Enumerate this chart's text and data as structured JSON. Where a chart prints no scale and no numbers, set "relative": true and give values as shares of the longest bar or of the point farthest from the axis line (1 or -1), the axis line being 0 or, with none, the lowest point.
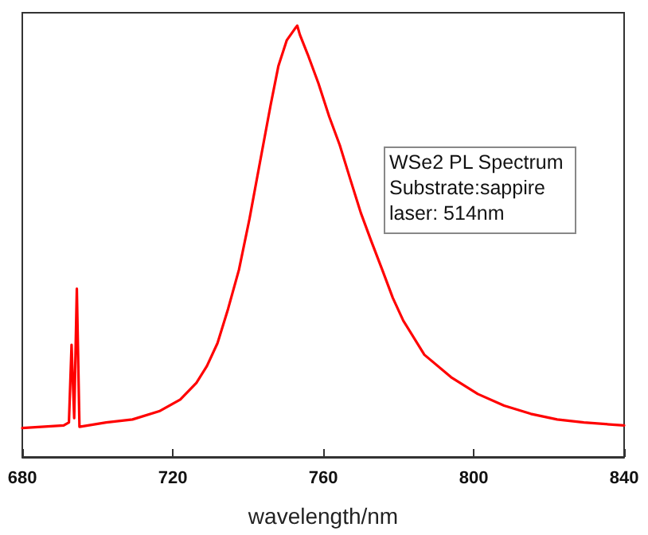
{
  "chart_data": {
    "type": "line",
    "relative": true,
    "xlabel": "wavelength/nm",
    "xlim": [
      680,
      840
    ],
    "xticks": [
      680,
      720,
      760,
      800,
      840
    ],
    "grid": false,
    "marker": "none",
    "line_style": "solid",
    "annotations": [
      "WSe2 PL Spectrum",
      "Substrate:sappire",
      "laser: 514nm"
    ],
    "series": [
      {
        "color": "#ff0000",
        "x": [
          680.0,
          691.0,
          692.4,
          693.1,
          693.8,
          694.5,
          695.2,
          702.3,
          709.3,
          716.4,
          722.0,
          726.3,
          729.1,
          731.9,
          734.7,
          737.6,
          740.4,
          743.2,
          746.0,
          748.1,
          750.3,
          752.4,
          753.1,
          753.8,
          755.9,
          758.7,
          761.6,
          764.4,
          767.2,
          770.0,
          772.8,
          775.7,
          778.5,
          781.3,
          786.9,
          794.0,
          801.1,
          808.1,
          815.2,
          822.2,
          829.3,
          840.0
        ],
        "values": [
          0.067,
          0.073,
          0.08,
          0.26,
          0.09,
          0.39,
          0.07,
          0.08,
          0.087,
          0.106,
          0.133,
          0.172,
          0.211,
          0.264,
          0.343,
          0.434,
          0.552,
          0.684,
          0.815,
          0.907,
          0.966,
          0.992,
          1,
          0.979,
          0.933,
          0.867,
          0.789,
          0.723,
          0.644,
          0.566,
          0.5,
          0.434,
          0.369,
          0.316,
          0.237,
          0.185,
          0.146,
          0.119,
          0.1,
          0.087,
          0.08,
          0.073
        ]
      }
    ]
  }
}
